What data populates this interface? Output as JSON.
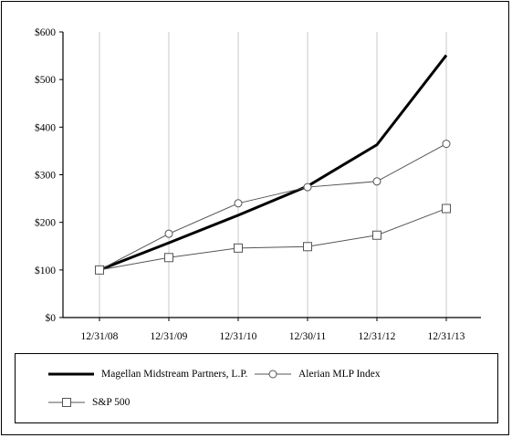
{
  "chart_data": {
    "type": "line",
    "title": "",
    "xlabel": "",
    "ylabel": "",
    "categories": [
      "12/31/08",
      "12/31/09",
      "12/31/10",
      "12/30/11",
      "12/31/12",
      "12/31/13"
    ],
    "ylim": [
      0,
      600
    ],
    "y_ticks": [
      0,
      100,
      200,
      300,
      400,
      500,
      600
    ],
    "y_tick_labels": [
      "$0",
      "$100",
      "$200",
      "$300",
      "$400",
      "$500",
      "$600"
    ],
    "grid": "vertical",
    "legend_position": "bottom",
    "series": [
      {
        "name": "Magellan Midstream Partners, L.P.",
        "marker": "none",
        "color": "#000000",
        "values": [
          100,
          157,
          215,
          276,
          363,
          551
        ]
      },
      {
        "name": "Alerian MLP Index",
        "marker": "circle",
        "color": "#555555",
        "values": [
          100,
          176,
          240,
          274,
          286,
          365
        ]
      },
      {
        "name": "S&P 500",
        "marker": "square",
        "color": "#555555",
        "values": [
          100,
          126,
          146,
          149,
          173,
          229
        ]
      }
    ]
  }
}
